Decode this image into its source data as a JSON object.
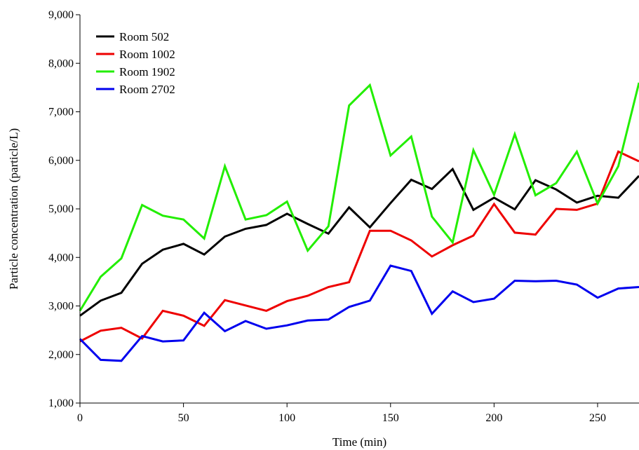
{
  "chart_data": {
    "type": "line",
    "title": "",
    "xlabel": "Time (min)",
    "ylabel": "Particle concentration (particle/L)",
    "xlim": [
      0,
      270
    ],
    "ylim": [
      1000,
      9000
    ],
    "xticks": [
      0,
      50,
      100,
      150,
      200,
      250
    ],
    "xtick_labels": [
      "0",
      "50",
      "100",
      "150",
      "200",
      "250"
    ],
    "yticks": [
      1000,
      2000,
      3000,
      4000,
      5000,
      6000,
      7000,
      8000,
      9000
    ],
    "ytick_labels": [
      "1,000",
      "2,000",
      "3,000",
      "4,000",
      "5,000",
      "6,000",
      "7,000",
      "8,000",
      "9,000"
    ],
    "grid": false,
    "legend_position": "top-left",
    "x": [
      0,
      10,
      20,
      30,
      40,
      50,
      60,
      70,
      80,
      90,
      100,
      110,
      120,
      130,
      140,
      150,
      160,
      170,
      180,
      190,
      200,
      210,
      220,
      230,
      240,
      250,
      260,
      270
    ],
    "series": [
      {
        "name": "Room 502",
        "color": "#000000",
        "values": [
          2800,
          3110,
          3270,
          3870,
          4160,
          4280,
          4060,
          4430,
          4590,
          4670,
          4900,
          4690,
          4490,
          5030,
          4620,
          5120,
          5600,
          5410,
          5820,
          4980,
          5230,
          4990,
          5590,
          5400,
          5130,
          5270,
          5230,
          5680
        ]
      },
      {
        "name": "Room 1002",
        "color": "#ee0000",
        "values": [
          2270,
          2490,
          2550,
          2330,
          2900,
          2800,
          2590,
          3120,
          3010,
          2900,
          3100,
          3210,
          3390,
          3490,
          4550,
          4550,
          4350,
          4020,
          4250,
          4450,
          5100,
          4510,
          4470,
          5000,
          4980,
          5110,
          6180,
          5980
        ]
      },
      {
        "name": "Room 1902",
        "color": "#22ee00",
        "values": [
          2900,
          3600,
          3980,
          5080,
          4860,
          4780,
          4390,
          5880,
          4780,
          4870,
          5150,
          4140,
          4640,
          7130,
          7550,
          6100,
          6490,
          4840,
          4310,
          6210,
          5290,
          6540,
          5280,
          5530,
          6180,
          5110,
          5880,
          7600
        ]
      },
      {
        "name": "Room 2702",
        "color": "#0000ee",
        "values": [
          2320,
          1890,
          1870,
          2380,
          2270,
          2290,
          2860,
          2480,
          2690,
          2530,
          2600,
          2700,
          2720,
          2980,
          3110,
          3830,
          3720,
          2840,
          3300,
          3080,
          3150,
          3520,
          3510,
          3520,
          3440,
          3170,
          3360,
          3390
        ]
      }
    ]
  }
}
